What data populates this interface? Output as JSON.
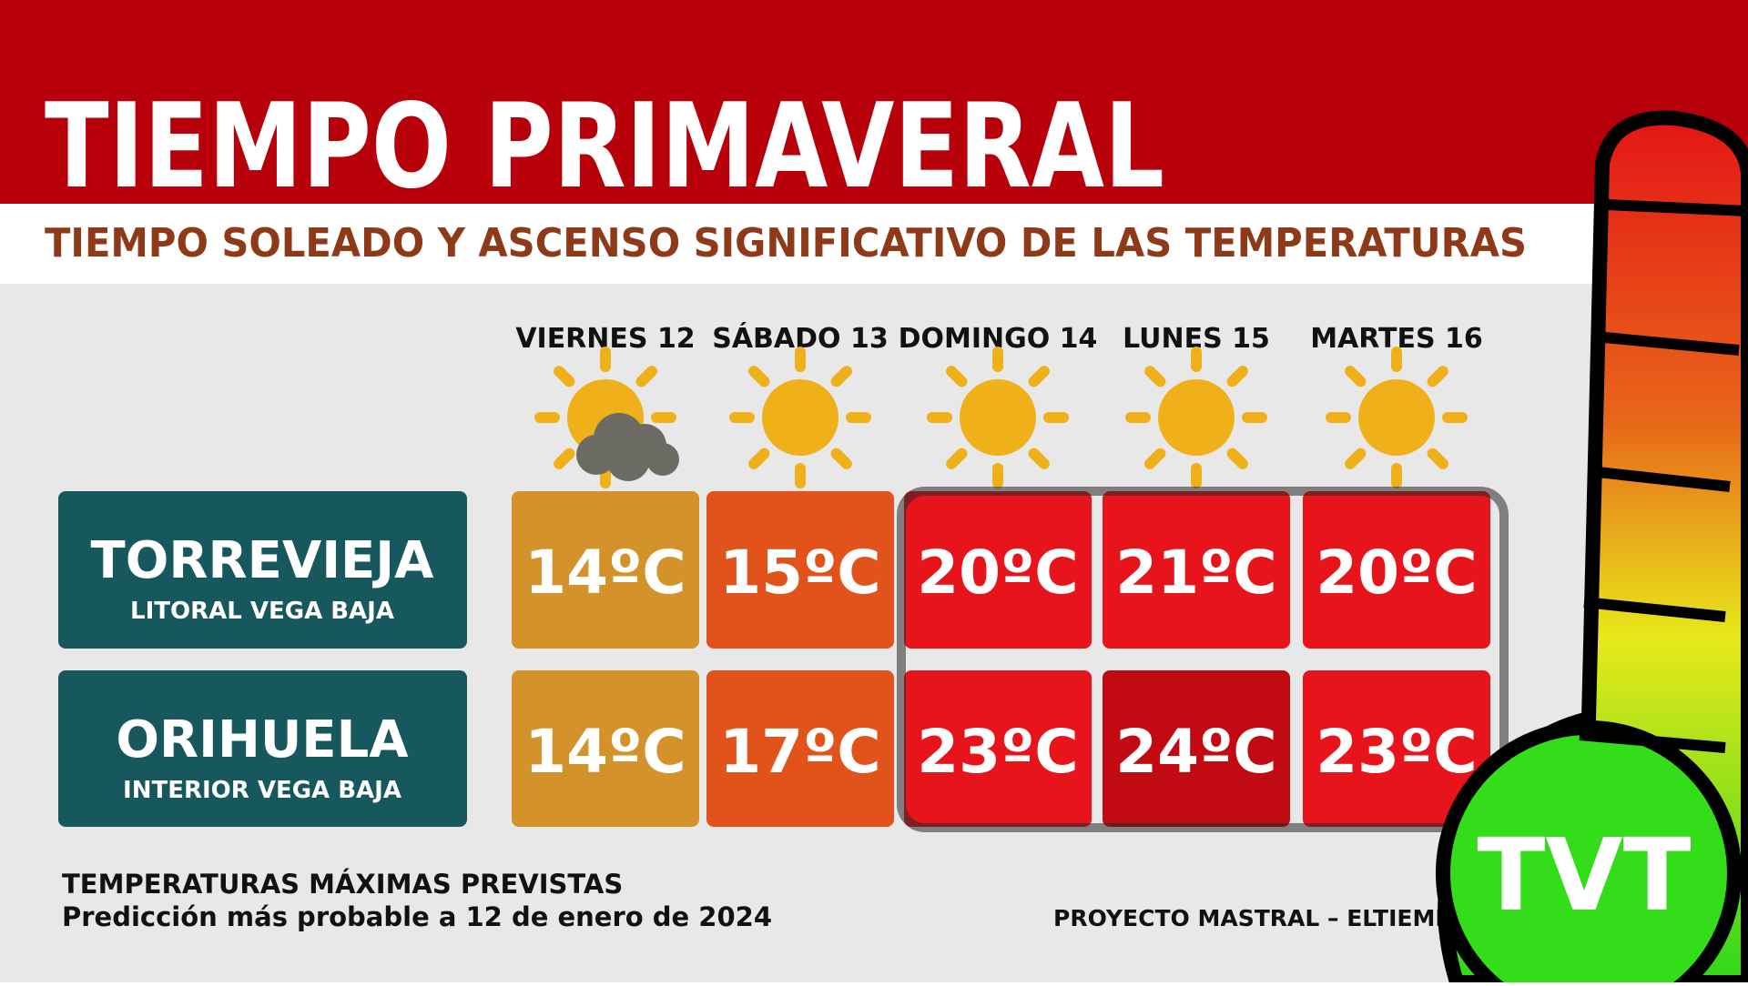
{
  "header": {
    "title": "TIEMPO PRIMAVERAL",
    "subtitle": "TIEMPO SOLEADO Y ASCENSO SIGNIFICATIVO DE LAS TEMPERATURAS"
  },
  "days": [
    "VIERNES 12",
    "SÁBADO 13",
    "DOMINGO 14",
    "LUNES 15",
    "MARTES 16"
  ],
  "rows": [
    {
      "name": "TORREVIEJA",
      "sub": "LITORAL VEGA BAJA",
      "temps": [
        "14ºC",
        "15ºC",
        "20ºC",
        "21ºC",
        "20ºC"
      ]
    },
    {
      "name": "ORIHUELA",
      "sub": "INTERIOR VEGA BAJA",
      "temps": [
        "14ºC",
        "17ºC",
        "23ºC",
        "24ºC",
        "23ºC"
      ]
    }
  ],
  "footer": {
    "line1": "TEMPERATURAS MÁXIMAS PREVISTAS",
    "line2": "Predicción más probable a 12 de enero de 2024",
    "source": "PROYECTO MASTRAL – ELTIEMPOENTORREVIEJA.ES"
  },
  "logo": "TVT"
}
